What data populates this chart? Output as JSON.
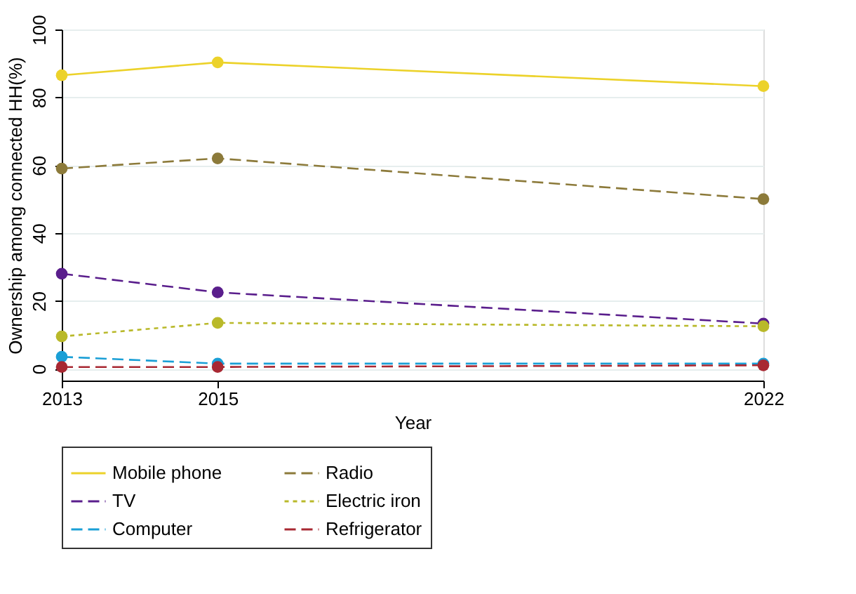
{
  "chart_data": {
    "type": "line",
    "xlabel": "Year",
    "ylabel": "Ownership among connected HH(%)",
    "x": [
      2013,
      2015,
      2022
    ],
    "xlim": [
      2013,
      2022
    ],
    "xticks": [
      2013,
      2015,
      2022
    ],
    "ylim": [
      -3.5,
      100
    ],
    "yticks": [
      0,
      20,
      40,
      60,
      80,
      100
    ],
    "grid": "y",
    "legend": "bottom",
    "marker": "circle",
    "series": [
      {
        "name": "Mobile phone",
        "color": "#ecd22a",
        "line_style": "solid",
        "values": [
          86.5,
          90.3,
          83.3
        ]
      },
      {
        "name": "Radio",
        "color": "#8c7a3a",
        "line_style": "dashed",
        "values": [
          59,
          62,
          50
        ]
      },
      {
        "name": "TV",
        "color": "#5a1e8c",
        "line_style": "dashed",
        "values": [
          28,
          22.5,
          13.3
        ]
      },
      {
        "name": "Electric iron",
        "color": "#b9b92a",
        "line_style": "dotted",
        "values": [
          9.5,
          13.5,
          12.5
        ]
      },
      {
        "name": "Computer",
        "color": "#1a9fd6",
        "line_style": "dashed",
        "values": [
          3.5,
          1.5,
          1.5
        ]
      },
      {
        "name": "Refrigerator",
        "color": "#a82832",
        "line_style": "dashed",
        "values": [
          0.5,
          0.5,
          1
        ]
      }
    ]
  }
}
